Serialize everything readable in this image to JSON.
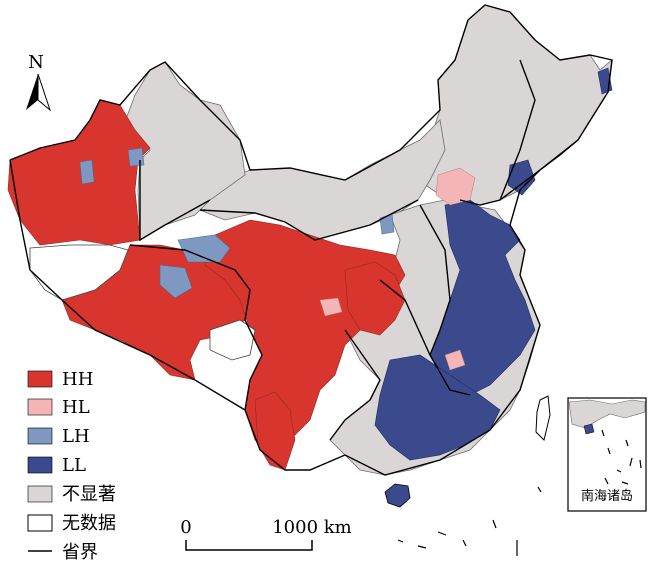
{
  "map": {
    "north_arrow_label": "N",
    "scale_bar": {
      "start": "0",
      "end": "1000 km"
    },
    "inset_label": "南海诸岛"
  },
  "legend": {
    "items": [
      {
        "key": "hh",
        "label": "HH",
        "color": "#d7352e",
        "kind": "fill"
      },
      {
        "key": "hl",
        "label": "HL",
        "color": "#f4b5b7",
        "kind": "fill"
      },
      {
        "key": "lh",
        "label": "LH",
        "color": "#7f98c2",
        "kind": "fill"
      },
      {
        "key": "ll",
        "label": "LL",
        "color": "#3b4a8c",
        "kind": "fill"
      },
      {
        "key": "ns",
        "label": "不显著",
        "color": "#dad6d6",
        "kind": "fill"
      },
      {
        "key": "nd",
        "label": "无数据",
        "color": "#ffffff",
        "kind": "fill"
      },
      {
        "key": "pb",
        "label": "省界",
        "color": "#000000",
        "kind": "line"
      }
    ]
  },
  "colors": {
    "hh": "#d7352e",
    "hl": "#f4b5b7",
    "lh": "#7f98c2",
    "ll": "#3b4a8c",
    "not_significant": "#dad6d6",
    "no_data": "#ffffff",
    "county_border": "#6d6d6d",
    "province_border": "#000000"
  }
}
